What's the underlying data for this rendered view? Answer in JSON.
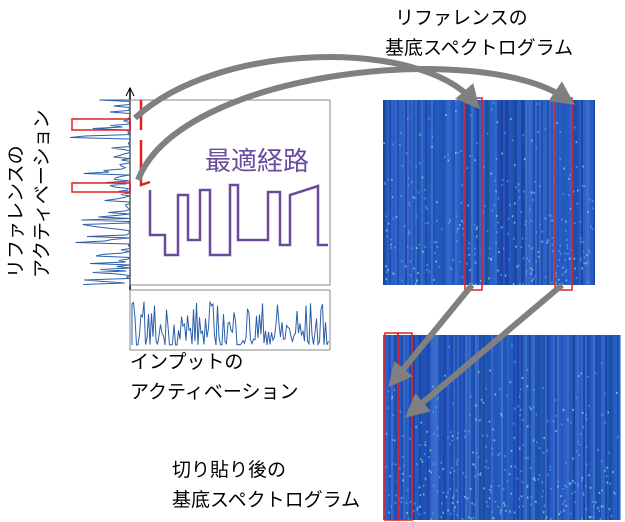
{
  "reference_basis": {
    "lines": [
      "リファレンスの",
      "基底スペクトログラム"
    ]
  },
  "optimal_path": {
    "label": "最適経路"
  },
  "reference_activation": {
    "lines": [
      "リファレンスの",
      "アクティベーション"
    ]
  },
  "input_activation": {
    "lines": [
      "インプットの",
      "アクティベーション"
    ]
  },
  "spliced_basis": {
    "lines": [
      "切り貼り後の",
      "基底スペクトログラム"
    ]
  }
}
